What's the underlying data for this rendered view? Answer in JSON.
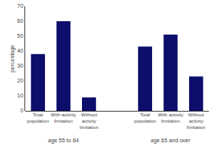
{
  "chart_data": {
    "type": "bar",
    "categories": [
      [
        "age 55 to 64",
        "Total\npopulation"
      ],
      [
        "age 55 to 64",
        "With activity\nlimitation"
      ],
      [
        "age 55 to 64",
        "Without\nactivity\nlimitation"
      ],
      [
        "age 65 and over",
        "Total\npopulation"
      ],
      [
        "age 65 and over",
        "With activity\nlimitation"
      ],
      [
        "age 65 and over",
        "Without\nactivity\nlimitation"
      ]
    ],
    "values": [
      38,
      60,
      9,
      43,
      51,
      23
    ],
    "color": "#0d0d6b",
    "ylabel": "percentage",
    "ylim": [
      0,
      70
    ],
    "yticks": [
      0,
      10,
      20,
      30,
      40,
      50,
      60,
      70
    ],
    "grid": false
  }
}
